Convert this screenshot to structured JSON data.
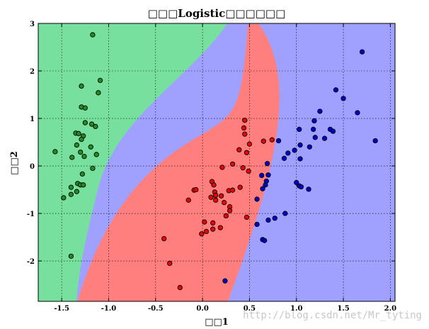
{
  "chart_data": {
    "type": "scatter",
    "title": "□□□Logistic□□□□□□",
    "xlabel": "□□1",
    "ylabel": "□□2",
    "xlim": [
      -1.75,
      2.05
    ],
    "ylim": [
      -2.85,
      3.0
    ],
    "xticks": [
      -1.5,
      -1.0,
      -0.5,
      0.0,
      0.5,
      1.0,
      1.5,
      2.0
    ],
    "xtick_labels": [
      "-1.5",
      "-1.0",
      "-0.5",
      "0.0",
      "0.5",
      "1.0",
      "1.5",
      "2.0"
    ],
    "yticks": [
      -2,
      -1,
      0,
      1,
      2,
      3
    ],
    "ytick_labels": [
      "-2",
      "-1",
      "0",
      "1",
      "2",
      "3"
    ],
    "grid": true,
    "grid_style": "dotted",
    "regions": {
      "class0_color": "#77e09e",
      "class1_color": "#ff7f7f",
      "class2_color": "#a0a0ff"
    },
    "series": [
      {
        "color": "#228b22",
        "points": [
          [
            -1.17,
            2.76
          ],
          [
            -1.09,
            1.8
          ],
          [
            -1.29,
            1.68
          ],
          [
            -1.11,
            1.54
          ],
          [
            -1.29,
            1.24
          ],
          [
            -1.25,
            1.22
          ],
          [
            -1.25,
            0.91
          ],
          [
            -1.18,
            0.88
          ],
          [
            -1.14,
            0.83
          ],
          [
            -1.35,
            0.69
          ],
          [
            -1.32,
            0.68
          ],
          [
            -1.27,
            0.63
          ],
          [
            -1.29,
            0.56
          ],
          [
            -1.34,
            0.44
          ],
          [
            -1.19,
            0.4
          ],
          [
            -1.57,
            0.3
          ],
          [
            -1.3,
            0.29
          ],
          [
            -1.39,
            0.18
          ],
          [
            -1.26,
            0.2
          ],
          [
            -1.13,
            0.24
          ],
          [
            -1.17,
            -0.05
          ],
          [
            -1.28,
            -0.17
          ],
          [
            -1.33,
            -0.37
          ],
          [
            -1.3,
            -0.4
          ],
          [
            -1.27,
            -0.4
          ],
          [
            -1.4,
            -0.45
          ],
          [
            -1.34,
            -0.54
          ],
          [
            -1.48,
            -0.67
          ],
          [
            -1.4,
            -0.6
          ],
          [
            -1.4,
            -1.9
          ]
        ]
      },
      {
        "color": "#ee0000",
        "points": [
          [
            0.45,
            0.96
          ],
          [
            0.44,
            0.8
          ],
          [
            0.45,
            0.67
          ],
          [
            0.5,
            0.46
          ],
          [
            0.65,
            0.52
          ],
          [
            0.74,
            0.55
          ],
          [
            0.39,
            0.34
          ],
          [
            0.47,
            0.28
          ],
          [
            0.49,
            -0.11
          ],
          [
            0.43,
            -0.04
          ],
          [
            0.32,
            0.04
          ],
          [
            0.21,
            -0.03
          ],
          [
            0.1,
            -0.33
          ],
          [
            0.12,
            -0.4
          ],
          [
            0.13,
            -0.55
          ],
          [
            0.14,
            -0.62
          ],
          [
            0.2,
            -0.63
          ],
          [
            0.28,
            -0.52
          ],
          [
            0.32,
            -0.51
          ],
          [
            0.4,
            -0.45
          ],
          [
            0.09,
            -0.66
          ],
          [
            0.23,
            -0.77
          ],
          [
            0.14,
            -0.72
          ],
          [
            0.29,
            -0.86
          ],
          [
            0.29,
            -0.94
          ],
          [
            0.25,
            -1.05
          ],
          [
            -0.15,
            -0.72
          ],
          [
            -0.09,
            -0.51
          ],
          [
            -0.07,
            -0.5
          ],
          [
            0.02,
            -1.18
          ],
          [
            0.11,
            -1.2
          ],
          [
            0.19,
            -1.3
          ],
          [
            0.47,
            -1.08
          ],
          [
            0.11,
            -1.33
          ],
          [
            -0.01,
            -1.43
          ],
          [
            0.04,
            -1.38
          ],
          [
            -0.41,
            -1.53
          ],
          [
            -0.35,
            -2.05
          ],
          [
            -0.24,
            -2.56
          ]
        ]
      },
      {
        "color": "#0000cd",
        "points": [
          [
            1.7,
            2.4
          ],
          [
            1.42,
            1.6
          ],
          [
            1.5,
            1.42
          ],
          [
            1.65,
            1.12
          ],
          [
            1.25,
            1.15
          ],
          [
            1.19,
            0.95
          ],
          [
            1.36,
            0.77
          ],
          [
            1.39,
            0.73
          ],
          [
            1.18,
            0.77
          ],
          [
            1.03,
            0.77
          ],
          [
            1.2,
            0.6
          ],
          [
            1.3,
            0.58
          ],
          [
            1.84,
            0.53
          ],
          [
            0.81,
            0.53
          ],
          [
            1.04,
            0.44
          ],
          [
            1.14,
            0.4
          ],
          [
            0.91,
            0.27
          ],
          [
            0.98,
            0.33
          ],
          [
            0.87,
            0.16
          ],
          [
            1.04,
            0.15
          ],
          [
            0.69,
            0.05
          ],
          [
            0.63,
            -0.2
          ],
          [
            0.7,
            -0.19
          ],
          [
            0.68,
            -0.32
          ],
          [
            0.67,
            -0.4
          ],
          [
            0.64,
            -0.48
          ],
          [
            0.58,
            -0.7
          ],
          [
            1.0,
            -0.35
          ],
          [
            1.03,
            -0.42
          ],
          [
            1.05,
            -0.44
          ],
          [
            1.13,
            -0.49
          ],
          [
            0.88,
            -1.0
          ],
          [
            0.77,
            -1.1
          ],
          [
            0.7,
            -1.14
          ],
          [
            0.58,
            -1.23
          ],
          [
            0.64,
            -1.55
          ],
          [
            0.66,
            -1.57
          ],
          [
            0.24,
            -2.42
          ]
        ]
      }
    ]
  },
  "watermark": "http://blog.csdn.net/Mr_tyting"
}
